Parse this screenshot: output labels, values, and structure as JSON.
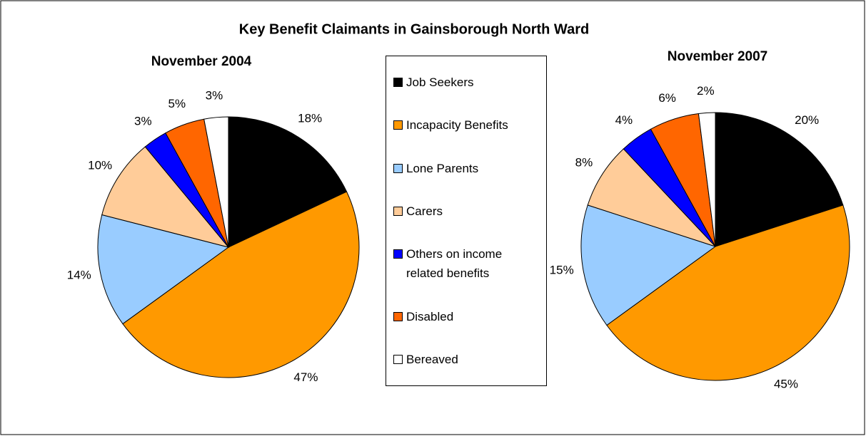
{
  "title": "Key Benefit Claimants in Gainsborough North Ward",
  "categories": [
    "Job Seekers",
    "Incapacity Benefits",
    "Lone Parents",
    "Carers",
    "Others on income related benefits",
    "Disabled",
    "Bereaved"
  ],
  "colors": [
    "#000000",
    "#ff9900",
    "#99ccff",
    "#ffcc99",
    "#0000ff",
    "#ff6600",
    "#ffffff"
  ],
  "chart_data": [
    {
      "type": "pie",
      "title": "November 2004",
      "values": [
        18,
        47,
        14,
        10,
        3,
        5,
        3
      ],
      "value_labels": [
        "18%",
        "47%",
        "14%",
        "10%",
        "3%",
        "5%",
        "3%"
      ]
    },
    {
      "type": "pie",
      "title": "November 2007",
      "values": [
        20,
        45,
        15,
        8,
        4,
        6,
        2
      ],
      "value_labels": [
        "20%",
        "45%",
        "15%",
        "8%",
        "4%",
        "6%",
        "2%"
      ]
    }
  ]
}
